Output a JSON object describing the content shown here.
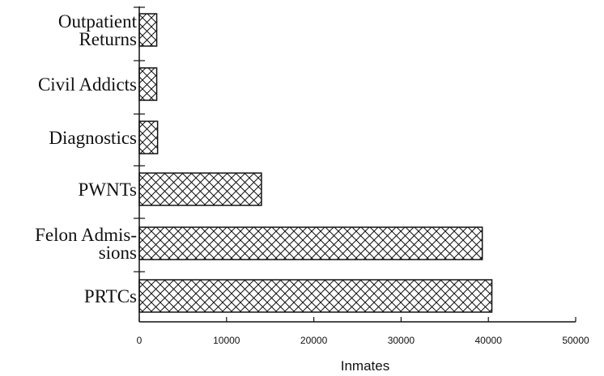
{
  "chart_data": {
    "type": "bar",
    "orientation": "horizontal",
    "categories": [
      "Outpatient Returns",
      "Civil Addicts",
      "Diagnostics",
      "PWNTs",
      "Felon Admissions",
      "PRTCs"
    ],
    "category_label_lines": [
      [
        "Outpatient",
        "Returns"
      ],
      [
        "Civil Addicts"
      ],
      [
        "Diagnostics"
      ],
      [
        "PWNTs"
      ],
      [
        "Felon Admis-",
        "sions"
      ],
      [
        "PRTCs"
      ]
    ],
    "values": [
      2000,
      2000,
      2100,
      14000,
      39300,
      40400
    ],
    "xlabel": "Inmates",
    "ylabel": "",
    "title": "",
    "xlim": [
      0,
      50000
    ],
    "xticks": [
      0,
      10000,
      20000,
      30000,
      40000,
      50000
    ],
    "xtick_labels": [
      "0",
      "10000",
      "20000",
      "30000",
      "40000",
      "50000"
    ],
    "bar_pattern": "crosshatch",
    "bar_fill": "#ffffff",
    "bar_stroke": "#111111",
    "grid": false
  }
}
